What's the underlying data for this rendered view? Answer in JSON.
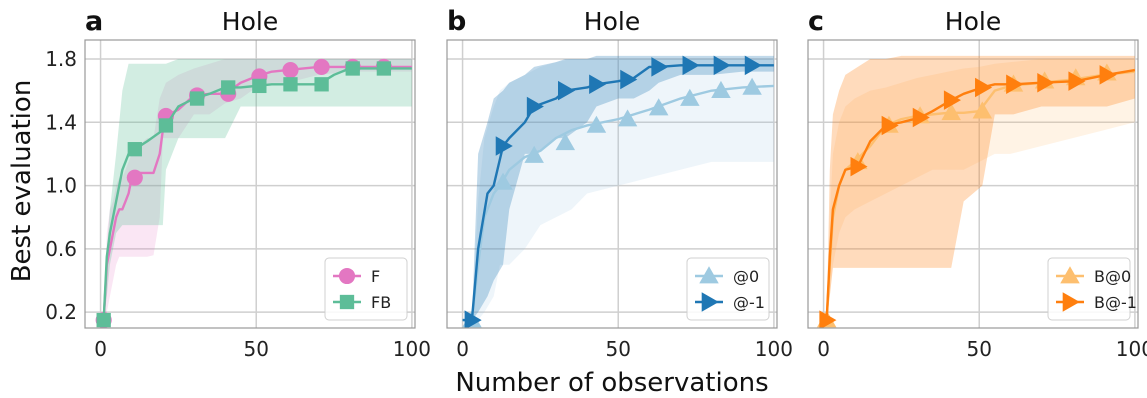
{
  "figure": {
    "xlabel": "Number of observations",
    "ylabel": "Best evaluation"
  },
  "chart_data": [
    {
      "type": "line",
      "letter": "a",
      "title": "Hole",
      "xlim": [
        -5,
        101
      ],
      "ylim": [
        0.1,
        1.92
      ],
      "xticks": [
        0,
        50,
        100
      ],
      "yticks": [
        0.2,
        0.6,
        1.0,
        1.4,
        1.8
      ],
      "ytick_labels": [
        "0.2",
        "0.6",
        "1.0",
        "1.4",
        "1.8"
      ],
      "legend": "bottom-right",
      "series": [
        {
          "name": "F",
          "color": "#e377c2",
          "marker": "circle",
          "x": [
            0,
            1,
            2,
            3,
            4,
            5,
            6,
            7,
            8,
            9,
            10,
            12,
            15,
            17,
            19,
            20,
            21,
            25,
            30,
            35,
            40,
            45,
            50,
            55,
            60,
            70,
            80,
            90,
            100
          ],
          "y": [
            0.15,
            0.15,
            0.5,
            0.6,
            0.7,
            0.8,
            0.85,
            0.85,
            0.9,
            0.95,
            1.05,
            1.08,
            1.08,
            1.08,
            1.2,
            1.35,
            1.44,
            1.48,
            1.57,
            1.58,
            1.58,
            1.65,
            1.69,
            1.72,
            1.73,
            1.75,
            1.75,
            1.75,
            1.75
          ],
          "markers_x": [
            1,
            11,
            21,
            31,
            41,
            51,
            61,
            71,
            81,
            91
          ],
          "markers_y": [
            0.15,
            1.05,
            1.44,
            1.57,
            1.58,
            1.69,
            1.73,
            1.75,
            1.75,
            1.75
          ],
          "band_lo": [
            0.15,
            0.15,
            0.2,
            0.3,
            0.4,
            0.5,
            0.55,
            0.55,
            0.55,
            0.55,
            0.55,
            0.55,
            0.55,
            0.56,
            0.8,
            1.3,
            1.3,
            1.3,
            1.45,
            1.45,
            1.52,
            1.55,
            1.62,
            1.65,
            1.65,
            1.7,
            1.72,
            1.72,
            1.72
          ],
          "band_hi": [
            0.15,
            0.15,
            0.7,
            0.85,
            0.9,
            1.0,
            1.05,
            1.05,
            1.1,
            1.15,
            1.2,
            1.25,
            1.3,
            1.3,
            1.55,
            1.6,
            1.65,
            1.7,
            1.74,
            1.77,
            1.8,
            1.8,
            1.8,
            1.8,
            1.8,
            1.8,
            1.8,
            1.8,
            1.8
          ]
        },
        {
          "name": "FB",
          "color": "#5dbd98",
          "marker": "square",
          "x": [
            0,
            1,
            2,
            3,
            5,
            7,
            9,
            11,
            15,
            20,
            21,
            25,
            30,
            35,
            40,
            45,
            50,
            55,
            60,
            65,
            70,
            75,
            80,
            90,
            100
          ],
          "y": [
            0.15,
            0.15,
            0.55,
            0.7,
            0.9,
            1.1,
            1.2,
            1.23,
            1.28,
            1.35,
            1.38,
            1.5,
            1.55,
            1.58,
            1.62,
            1.62,
            1.63,
            1.64,
            1.64,
            1.64,
            1.64,
            1.7,
            1.74,
            1.74,
            1.74
          ],
          "markers_x": [
            1,
            11,
            21,
            31,
            41,
            51,
            61,
            71,
            81,
            91
          ],
          "markers_y": [
            0.15,
            1.23,
            1.38,
            1.55,
            1.62,
            1.63,
            1.64,
            1.64,
            1.74,
            1.74
          ],
          "band_lo": [
            0.15,
            0.15,
            0.3,
            0.5,
            0.7,
            0.75,
            0.75,
            0.75,
            0.75,
            0.75,
            1.1,
            1.3,
            1.3,
            1.3,
            1.3,
            1.5,
            1.5,
            1.5,
            1.5,
            1.5,
            1.5,
            1.5,
            1.5,
            1.5,
            1.5
          ],
          "band_hi": [
            0.15,
            0.15,
            0.6,
            0.85,
            1.2,
            1.6,
            1.77,
            1.77,
            1.77,
            1.77,
            1.77,
            1.8,
            1.8,
            1.8,
            1.8,
            1.8,
            1.8,
            1.8,
            1.8,
            1.8,
            1.8,
            1.8,
            1.8,
            1.8,
            1.8
          ]
        }
      ]
    },
    {
      "type": "line",
      "letter": "b",
      "title": "Hole",
      "xlim": [
        -5,
        101
      ],
      "ylim": [
        0.1,
        1.92
      ],
      "xticks": [
        0,
        50,
        100
      ],
      "yticks": [
        0.2,
        0.6,
        1.0,
        1.4,
        1.8
      ],
      "ytick_labels": [
        "",
        "",
        "",
        "",
        ""
      ],
      "legend": "bottom-right",
      "series": [
        {
          "name": "@0",
          "color": "#9ecae1",
          "marker": "triangle-up",
          "x": [
            0,
            3,
            5,
            7,
            10,
            12,
            15,
            20,
            25,
            30,
            35,
            40,
            50,
            60,
            70,
            80,
            90,
            100
          ],
          "y": [
            0.15,
            0.15,
            0.5,
            0.8,
            0.95,
            1.0,
            1.1,
            1.18,
            1.22,
            1.3,
            1.35,
            1.38,
            1.42,
            1.48,
            1.55,
            1.6,
            1.62,
            1.63
          ],
          "markers_x": [
            3,
            13,
            23,
            33,
            43,
            53,
            63,
            73,
            83,
            93
          ],
          "markers_y": [
            0.15,
            1.02,
            1.19,
            1.27,
            1.38,
            1.42,
            1.49,
            1.55,
            1.6,
            1.62
          ],
          "band_lo": [
            0.15,
            0.15,
            0.15,
            0.2,
            0.3,
            0.5,
            0.5,
            0.6,
            0.75,
            0.8,
            0.85,
            0.95,
            1.0,
            1.05,
            1.1,
            1.15,
            1.15,
            1.15
          ],
          "band_hi": [
            0.15,
            0.15,
            0.9,
            1.3,
            1.5,
            1.6,
            1.65,
            1.7,
            1.75,
            1.78,
            1.8,
            1.8,
            1.8,
            1.8,
            1.8,
            1.8,
            1.8,
            1.8
          ]
        },
        {
          "name": "@-1",
          "color": "#1f77b4",
          "marker": "triangle-right",
          "x": [
            0,
            3,
            5,
            8,
            10,
            13,
            15,
            20,
            23,
            30,
            33,
            40,
            43,
            50,
            55,
            60,
            63,
            70,
            80,
            90,
            100
          ],
          "y": [
            0.15,
            0.15,
            0.6,
            0.95,
            1.0,
            1.25,
            1.3,
            1.4,
            1.5,
            1.55,
            1.6,
            1.62,
            1.64,
            1.66,
            1.68,
            1.75,
            1.75,
            1.76,
            1.76,
            1.76,
            1.76
          ],
          "markers_x": [
            3,
            13,
            23,
            33,
            43,
            53,
            63,
            73,
            83,
            93
          ],
          "markers_y": [
            0.15,
            1.25,
            1.5,
            1.6,
            1.64,
            1.67,
            1.75,
            1.76,
            1.76,
            1.76
          ],
          "band_lo": [
            0.15,
            0.15,
            0.2,
            0.3,
            0.4,
            0.5,
            0.85,
            1.2,
            1.2,
            1.3,
            1.3,
            1.4,
            1.5,
            1.55,
            1.55,
            1.6,
            1.65,
            1.7,
            1.7,
            1.72,
            1.72
          ],
          "band_hi": [
            0.15,
            0.15,
            1.2,
            1.4,
            1.55,
            1.6,
            1.65,
            1.7,
            1.75,
            1.78,
            1.8,
            1.8,
            1.82,
            1.82,
            1.82,
            1.82,
            1.82,
            1.82,
            1.82,
            1.82,
            1.82
          ]
        }
      ]
    },
    {
      "type": "line",
      "letter": "c",
      "title": "Hole",
      "xlim": [
        -5,
        101
      ],
      "ylim": [
        0.1,
        1.92
      ],
      "xticks": [
        0,
        50,
        100
      ],
      "yticks": [
        0.2,
        0.6,
        1.0,
        1.4,
        1.8
      ],
      "ytick_labels": [
        "",
        "",
        "",
        "",
        ""
      ],
      "legend": "bottom-right",
      "series": [
        {
          "name": "B@0",
          "color": "#fdbf6f",
          "marker": "triangle-up",
          "x": [
            0,
            1,
            2,
            3,
            5,
            7,
            10,
            15,
            20,
            25,
            30,
            35,
            40,
            45,
            50,
            55,
            60,
            70,
            80,
            90,
            100
          ],
          "y": [
            0.15,
            0.15,
            0.5,
            0.8,
            1.0,
            1.1,
            1.15,
            1.25,
            1.38,
            1.42,
            1.44,
            1.45,
            1.46,
            1.46,
            1.47,
            1.6,
            1.63,
            1.65,
            1.67,
            1.7,
            1.72
          ],
          "markers_x": [
            1,
            11,
            21,
            31,
            41,
            51,
            61,
            71,
            81,
            91
          ],
          "markers_y": [
            0.15,
            1.15,
            1.38,
            1.44,
            1.46,
            1.47,
            1.64,
            1.66,
            1.68,
            1.71
          ],
          "band_lo": [
            0.15,
            0.15,
            0.3,
            0.5,
            0.7,
            0.8,
            0.85,
            0.9,
            0.95,
            1.0,
            1.05,
            1.1,
            1.1,
            1.1,
            1.15,
            1.2,
            1.2,
            1.25,
            1.3,
            1.35,
            1.4
          ],
          "band_hi": [
            0.15,
            0.15,
            0.8,
            1.2,
            1.4,
            1.5,
            1.55,
            1.6,
            1.62,
            1.65,
            1.68,
            1.7,
            1.72,
            1.74,
            1.75,
            1.77,
            1.78,
            1.8,
            1.8,
            1.8,
            1.8
          ]
        },
        {
          "name": "B@-1",
          "color": "#ff7f0e",
          "marker": "triangle-right",
          "x": [
            0,
            1,
            2,
            3,
            5,
            7,
            11,
            15,
            20,
            25,
            31,
            35,
            41,
            45,
            51,
            55,
            61,
            70,
            81,
            91,
            100
          ],
          "y": [
            0.15,
            0.15,
            0.55,
            0.85,
            1.0,
            1.1,
            1.12,
            1.28,
            1.38,
            1.4,
            1.43,
            1.47,
            1.54,
            1.58,
            1.62,
            1.64,
            1.64,
            1.65,
            1.66,
            1.7,
            1.73
          ],
          "markers_x": [
            1,
            11,
            21,
            31,
            41,
            51,
            61,
            71,
            81,
            91
          ],
          "markers_y": [
            0.15,
            1.12,
            1.38,
            1.43,
            1.54,
            1.62,
            1.64,
            1.65,
            1.66,
            1.7
          ],
          "band_lo": [
            0.15,
            0.15,
            0.3,
            0.48,
            0.48,
            0.48,
            0.48,
            0.48,
            0.48,
            0.48,
            0.48,
            0.48,
            0.48,
            0.9,
            1.0,
            1.45,
            1.45,
            1.5,
            1.5,
            1.5,
            1.55
          ],
          "band_hi": [
            0.15,
            0.15,
            1.1,
            1.45,
            1.6,
            1.7,
            1.75,
            1.8,
            1.8,
            1.82,
            1.82,
            1.82,
            1.82,
            1.82,
            1.82,
            1.82,
            1.82,
            1.82,
            1.82,
            1.82,
            1.82
          ]
        }
      ]
    }
  ]
}
